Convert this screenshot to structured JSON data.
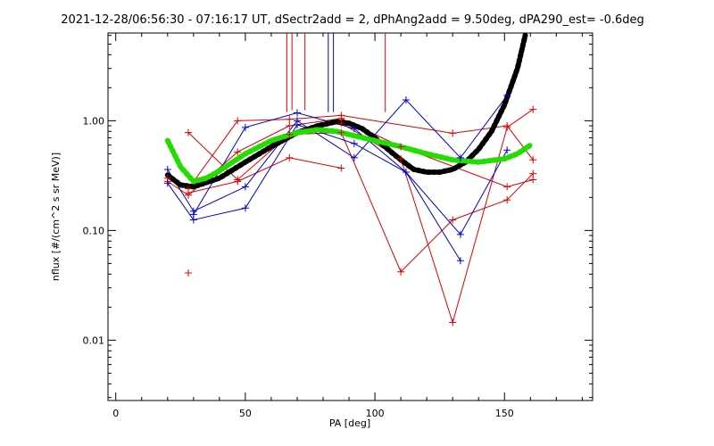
{
  "chart_data": {
    "type": "line",
    "title": "2021-12-28/06:56:30 - 07:16:17 UT, dSectr2add = 2, dPhAng2add = 9.50deg, dPA290_est=  -0.6deg",
    "xlabel": "PA [deg]",
    "ylabel": "nflux [#/(cm^2 s sr MeV)]",
    "xlim": [
      -3,
      184
    ],
    "ylim_log10": [
      -2.55,
      0.8
    ],
    "xscale": "linear",
    "yscale": "log",
    "grid": false,
    "xticks": [
      0,
      50,
      100,
      150
    ],
    "xtick_labels": [
      "0",
      "50",
      "100",
      "150"
    ],
    "yticks": [
      0.01,
      0.1,
      1.0
    ],
    "ytick_labels": [
      "0.01",
      "0.10",
      "1.00"
    ],
    "series": [
      {
        "color": "#dd0000",
        "style": "line",
        "points": [
          [
            20,
            0.3
          ],
          [
            28,
            0.24
          ],
          [
            47,
            1.0
          ],
          [
            67,
            1.03
          ],
          [
            87,
            1.12
          ],
          [
            130,
            0.77
          ],
          [
            151,
            0.9
          ],
          [
            161,
            0.44
          ]
        ]
      },
      {
        "color": "#dd0000",
        "style": "line",
        "points": [
          [
            20,
            0.28
          ],
          [
            28,
            0.21
          ],
          [
            47,
            0.52
          ],
          [
            67,
            0.9
          ],
          [
            87,
            1.05
          ],
          [
            110,
            0.58
          ],
          [
            151,
            0.25
          ],
          [
            161,
            0.29
          ]
        ]
      },
      {
        "color": "#dd0000",
        "style": "line",
        "points": [
          [
            28,
            0.22
          ],
          [
            47,
            0.28
          ],
          [
            67,
            0.46
          ],
          [
            87,
            0.37
          ]
        ]
      },
      {
        "color": "#dd0000",
        "style": "line",
        "points": [
          [
            28,
            0.78
          ],
          [
            47,
            0.29
          ],
          [
            67,
            0.75
          ],
          [
            87,
            0.78
          ],
          [
            110,
            0.042
          ],
          [
            130,
            0.125
          ],
          [
            151,
            0.19
          ],
          [
            161,
            0.33
          ]
        ]
      },
      {
        "color": "#dd0000",
        "style": "line",
        "points": [
          [
            87,
            0.95
          ],
          [
            110,
            0.45
          ],
          [
            130,
            0.0145
          ],
          [
            151,
            0.87
          ],
          [
            161,
            1.27
          ]
        ]
      },
      {
        "color": "#dd0000",
        "style": "markers",
        "points": [
          [
            28,
            0.041
          ]
        ]
      },
      {
        "color": "#0000cc",
        "style": "line",
        "points": [
          [
            20,
            0.36
          ],
          [
            30,
            0.15
          ],
          [
            50,
            0.25
          ],
          [
            70,
            1.0
          ],
          [
            92,
            0.46
          ],
          [
            112,
            1.55
          ],
          [
            133,
            0.46
          ],
          [
            151,
            1.7
          ]
        ]
      },
      {
        "color": "#0000cc",
        "style": "line",
        "points": [
          [
            20,
            0.27
          ],
          [
            30,
            0.125
          ],
          [
            50,
            0.16
          ],
          [
            70,
            0.92
          ],
          [
            92,
            0.62
          ],
          [
            112,
            0.34
          ],
          [
            133,
            0.092
          ],
          [
            151,
            0.54
          ]
        ]
      },
      {
        "color": "#0000cc",
        "style": "line",
        "points": [
          [
            30,
            0.14
          ],
          [
            50,
            0.87
          ],
          [
            70,
            1.18
          ],
          [
            92,
            0.85
          ],
          [
            112,
            0.34
          ],
          [
            133,
            0.053
          ]
        ]
      },
      {
        "color": "#000000",
        "style": "fit",
        "points": [
          [
            20,
            0.32
          ],
          [
            25,
            0.26
          ],
          [
            30,
            0.25
          ],
          [
            40,
            0.3
          ],
          [
            50,
            0.42
          ],
          [
            60,
            0.58
          ],
          [
            70,
            0.78
          ],
          [
            78,
            0.9
          ],
          [
            85,
            0.98
          ],
          [
            90,
            0.95
          ],
          [
            95,
            0.85
          ],
          [
            100,
            0.7
          ],
          [
            105,
            0.55
          ],
          [
            110,
            0.44
          ],
          [
            115,
            0.36
          ],
          [
            120,
            0.34
          ],
          [
            125,
            0.34
          ],
          [
            130,
            0.36
          ],
          [
            135,
            0.42
          ],
          [
            140,
            0.55
          ],
          [
            145,
            0.8
          ],
          [
            150,
            1.4
          ],
          [
            155,
            3.0
          ],
          [
            158,
            6.0
          ]
        ]
      },
      {
        "color": "#22dd00",
        "style": "fit",
        "points": [
          [
            20,
            0.66
          ],
          [
            25,
            0.38
          ],
          [
            30,
            0.28
          ],
          [
            35,
            0.3
          ],
          [
            40,
            0.35
          ],
          [
            50,
            0.5
          ],
          [
            60,
            0.66
          ],
          [
            70,
            0.78
          ],
          [
            78,
            0.83
          ],
          [
            85,
            0.8
          ],
          [
            90,
            0.75
          ],
          [
            100,
            0.66
          ],
          [
            110,
            0.58
          ],
          [
            120,
            0.5
          ],
          [
            130,
            0.44
          ],
          [
            140,
            0.42
          ],
          [
            150,
            0.45
          ],
          [
            155,
            0.5
          ],
          [
            160,
            0.6
          ]
        ]
      }
    ],
    "spikes": [
      {
        "color": "#dd0000",
        "x": 66,
        "y_low": 1.2
      },
      {
        "color": "#dd0000",
        "x": 68,
        "y_low": 1.25
      },
      {
        "color": "#dd0000",
        "x": 73,
        "y_low": 1.25
      },
      {
        "color": "#dd0000",
        "x": 104,
        "y_low": 1.2
      },
      {
        "color": "#0000cc",
        "x": 82,
        "y_low": 1.2
      },
      {
        "color": "#0000cc",
        "x": 84,
        "y_low": 1.2
      }
    ]
  }
}
